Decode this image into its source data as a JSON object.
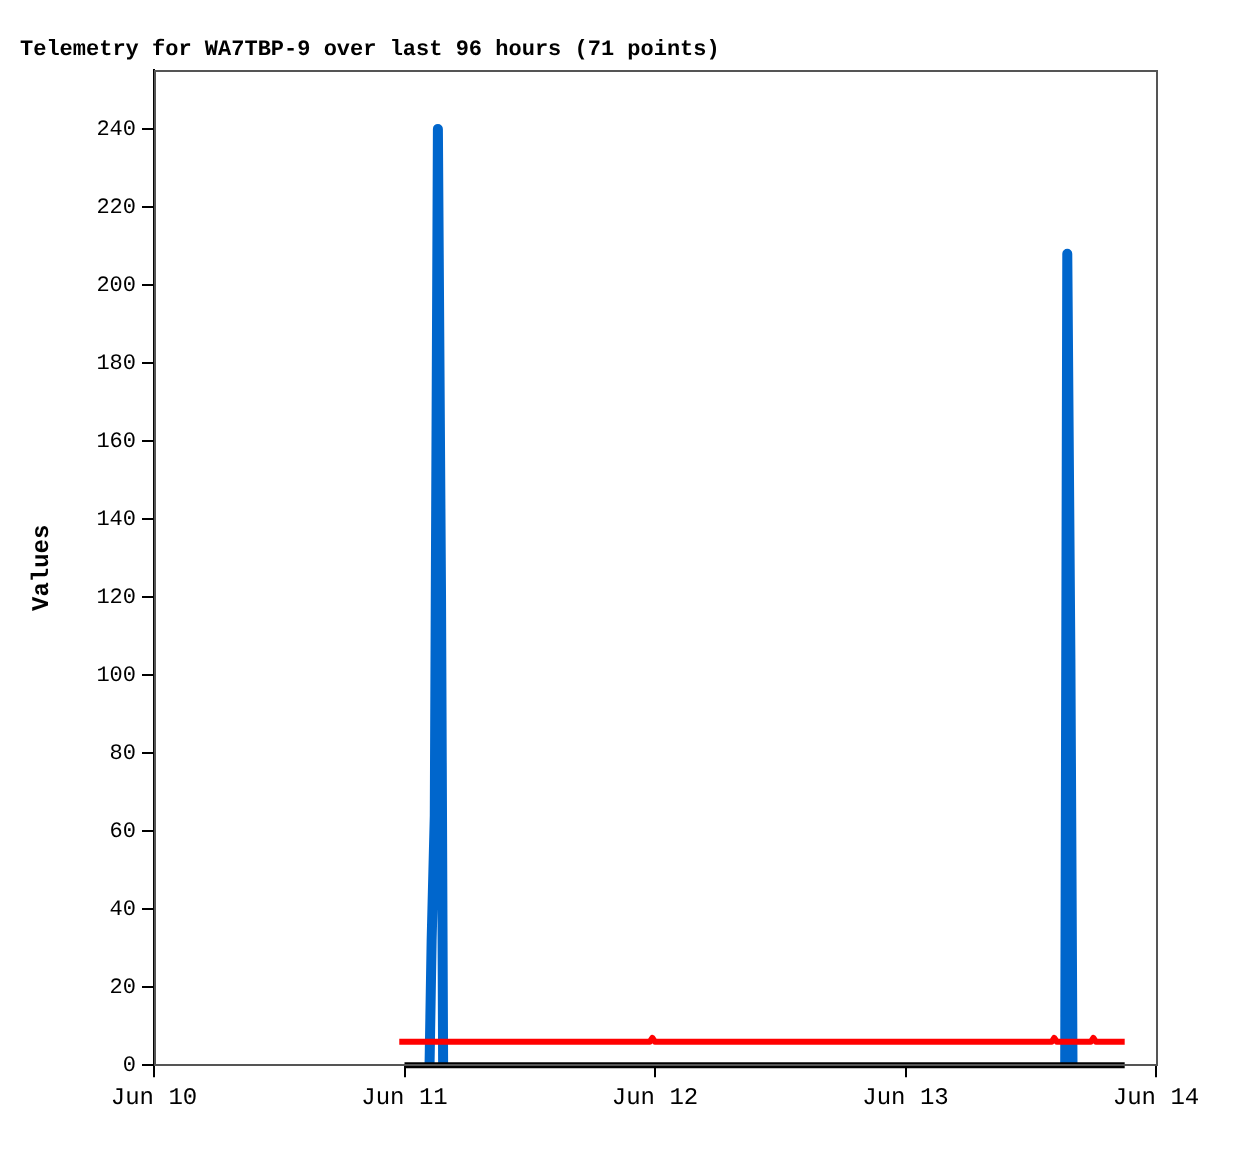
{
  "chart_data": {
    "type": "line",
    "title": "Telemetry for WA7TBP-9 over last 96 hours (71 points)",
    "ylabel": "Values",
    "xlim": [
      "--06-10",
      "--06-14"
    ],
    "xticks": [
      {
        "value": "--06-10",
        "label": "Jun 10"
      },
      {
        "value": "--06-11",
        "label": "Jun 11"
      },
      {
        "value": "--06-12",
        "label": "Jun 12"
      },
      {
        "value": "--06-13",
        "label": "Jun 13"
      },
      {
        "value": "--06-14",
        "label": "Jun 14"
      }
    ],
    "ylim": [
      0,
      255
    ],
    "yticks": [
      0,
      20,
      40,
      60,
      80,
      100,
      120,
      140,
      160,
      180,
      200,
      220,
      240
    ],
    "grid": false,
    "legend": false,
    "marker": "none",
    "line_style": "solid",
    "series": [
      {
        "color": "#000000",
        "x": [
          "--06-11T00:00",
          "--06-13T21:00"
        ],
        "values": [
          0,
          0
        ]
      },
      {
        "color": "#ff0000",
        "x": [
          "--06-10T23:30",
          "--06-11T23:30",
          "--06-11T23:45",
          "--06-12T00:00",
          "--06-13T14:00",
          "--06-13T14:15",
          "--06-13T14:30",
          "--06-13T17:45",
          "--06-13T18:00",
          "--06-13T18:15",
          "--06-13T21:00"
        ],
        "values": [
          6,
          6,
          7,
          6,
          6,
          7,
          6,
          6,
          7,
          6,
          6
        ]
      },
      {
        "color": "#0066cc",
        "x": [
          "--06-11T02:24",
          "--06-11T02:36",
          "--06-11T02:54",
          "--06-11T03:12",
          "--06-11T03:30",
          "--06-11T03:42",
          "--06-12T12:00",
          "--06-13T15:18",
          "--06-13T15:30",
          "--06-13T15:48",
          "--06-13T16:00"
        ],
        "values": [
          0,
          32,
          64,
          240,
          120,
          0,
          null,
          0,
          208,
          104,
          0
        ]
      }
    ]
  }
}
